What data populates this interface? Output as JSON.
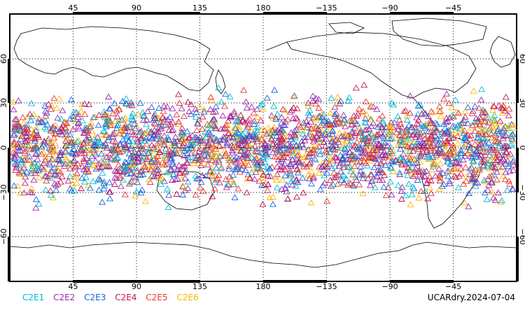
{
  "map": {
    "lon_ticks_top": [
      "45",
      "90",
      "135",
      "180",
      "−135",
      "−90",
      "−45"
    ],
    "lon_ticks_bottom": [
      "45",
      "90",
      "135",
      "180",
      "−135",
      "−90",
      "−45"
    ],
    "lat_ticks": [
      "60",
      "30",
      "0",
      "−30",
      "−60"
    ],
    "lon_range": [
      0,
      360
    ],
    "lat_range": [
      -90,
      90
    ],
    "observation_lat_band": [
      -45,
      45
    ],
    "marker": "open-triangle",
    "grid": "dotted"
  },
  "legend": {
    "items": [
      {
        "label": "C2E1",
        "color": "#00bcd4"
      },
      {
        "label": "C2E2",
        "color": "#9c27b0"
      },
      {
        "label": "C2E3",
        "color": "#1565e0"
      },
      {
        "label": "C2E4",
        "color": "#c2185b"
      },
      {
        "label": "C2E5",
        "color": "#e53935"
      },
      {
        "label": "C2E6",
        "color": "#ffb300"
      }
    ]
  },
  "footer": {
    "dataset_label": "UCARdry.2024-07-04"
  }
}
